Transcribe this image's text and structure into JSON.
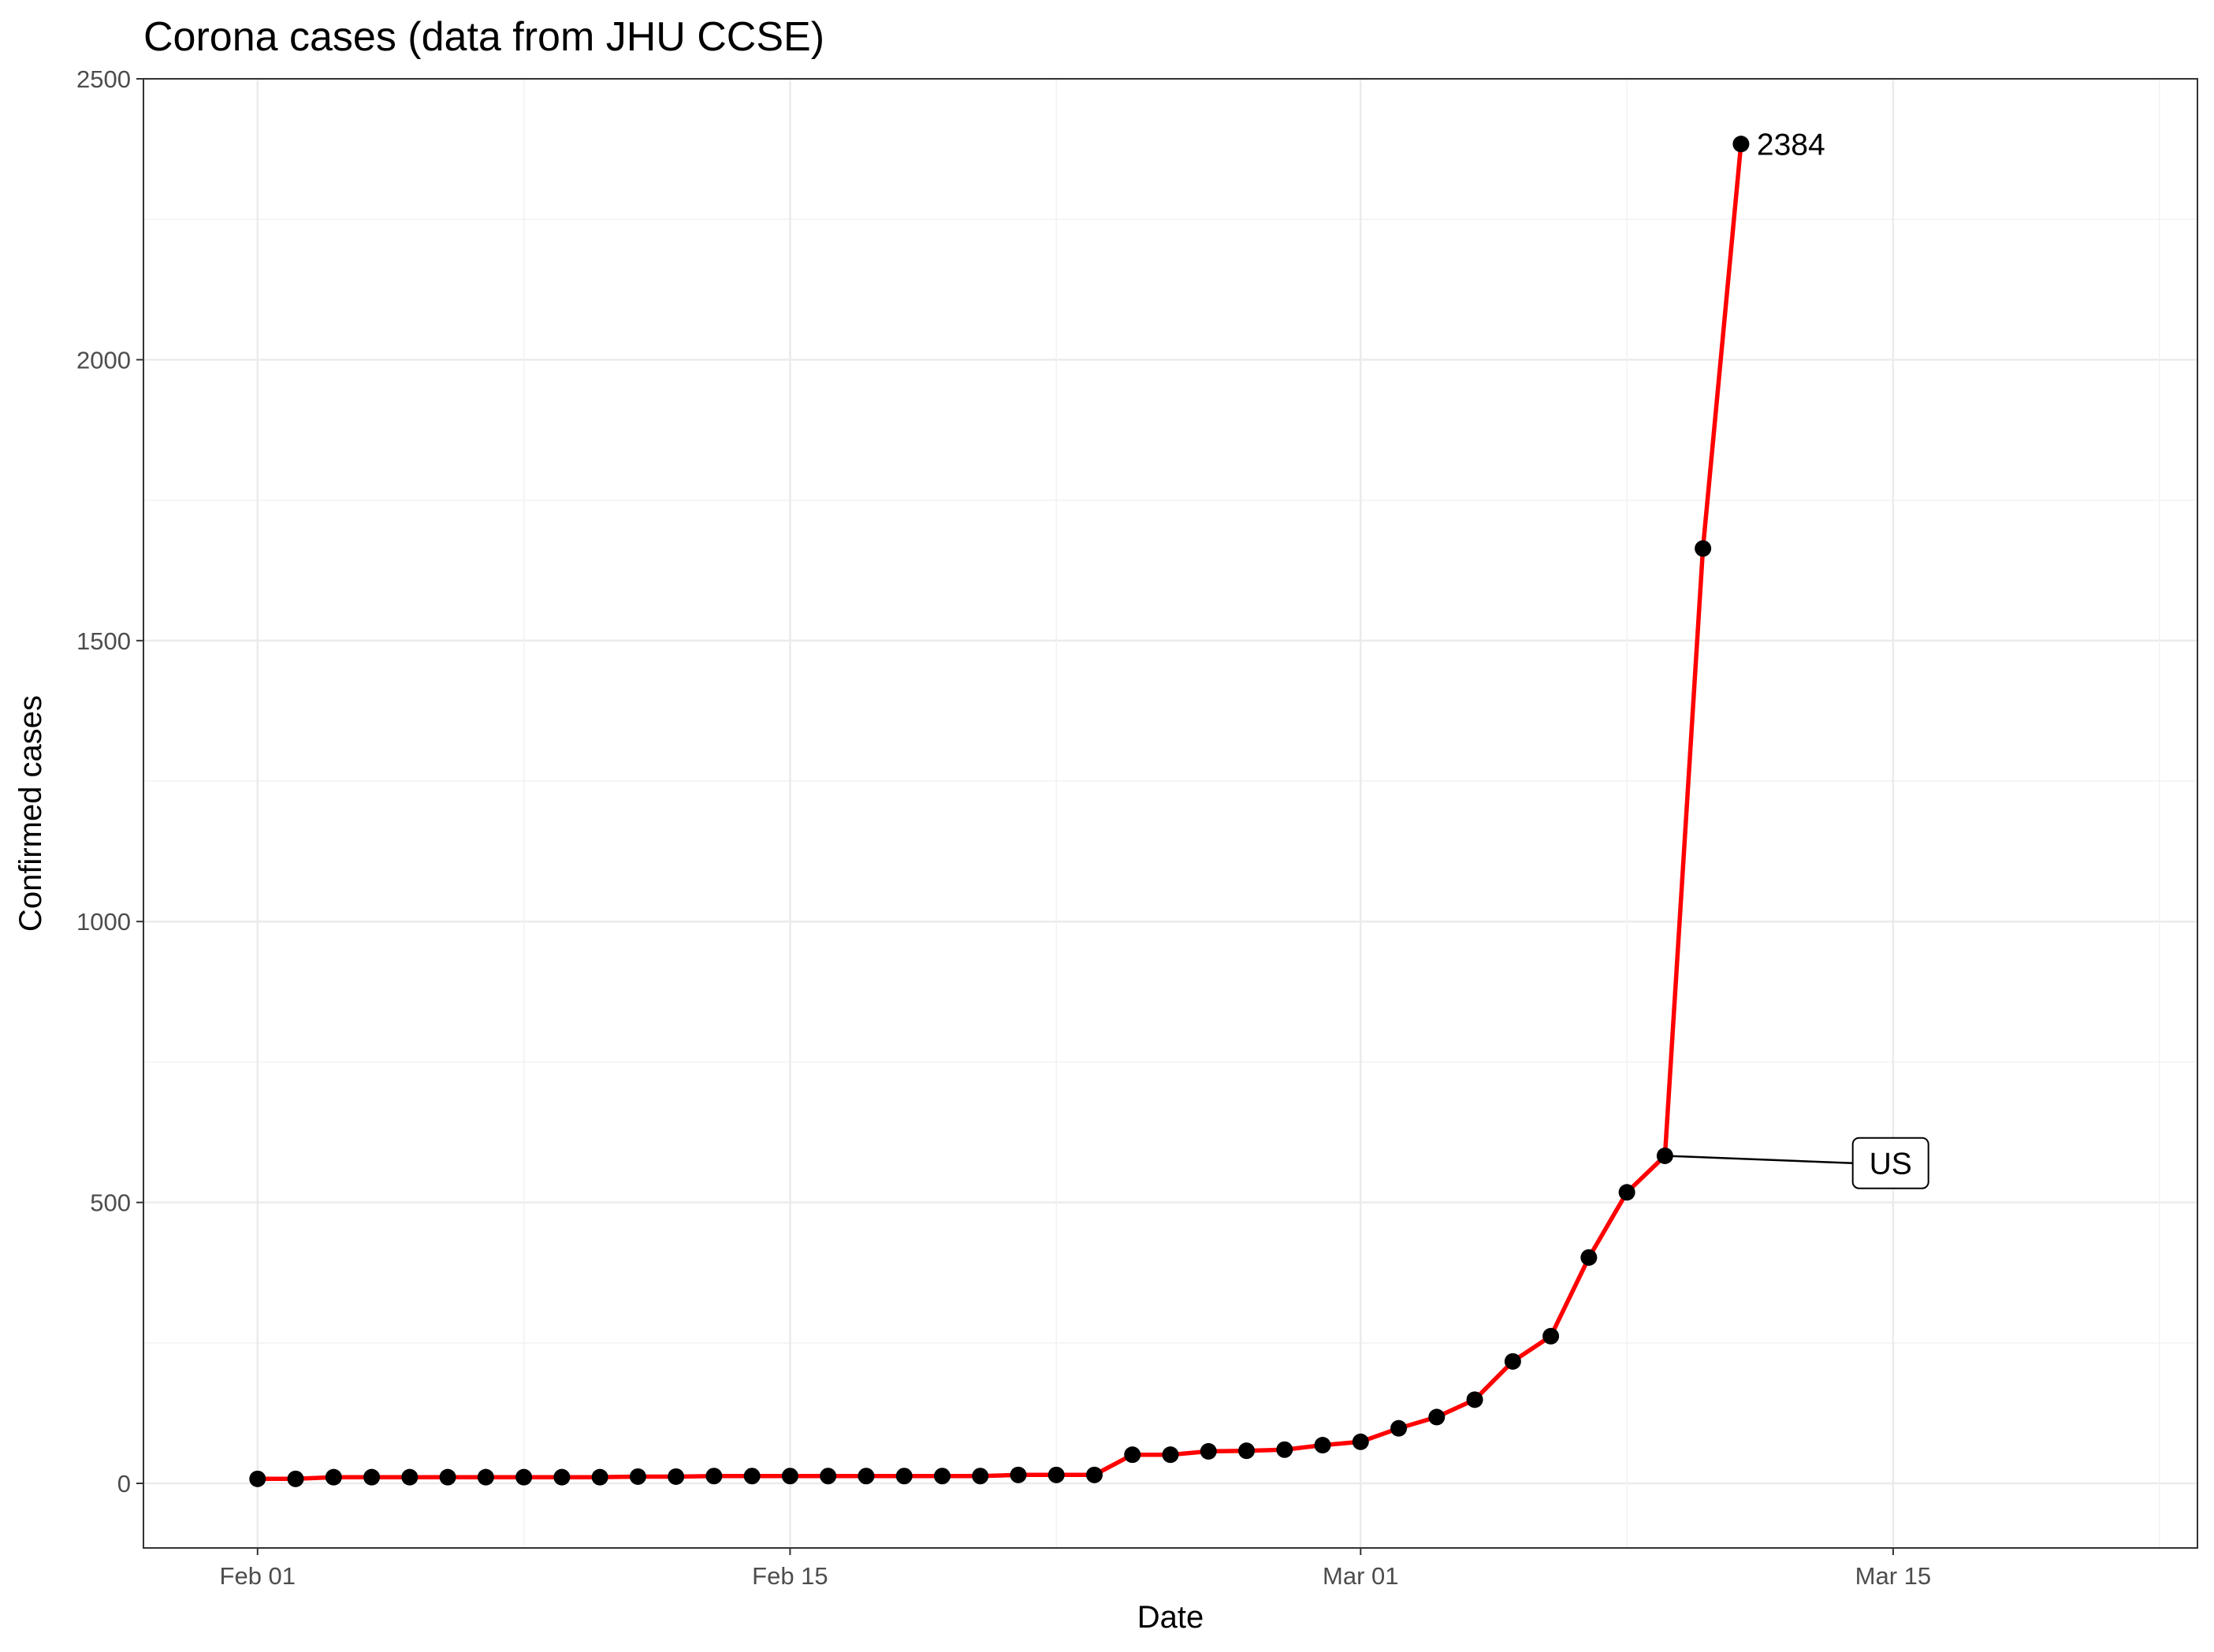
{
  "chart_data": {
    "type": "line",
    "title": "Corona cases (data from JHU CCSE)",
    "xlabel": "Date",
    "ylabel": "Confirmed cases",
    "x_tick_labels": [
      "Feb 01",
      "Feb 15",
      "Mar 01",
      "Mar 15"
    ],
    "x_tick_dates": [
      "2020-02-01",
      "2020-02-15",
      "2020-03-01",
      "2020-03-15"
    ],
    "xlim": [
      "2020-01-29",
      "2020-03-23"
    ],
    "y_tick_labels": [
      "0",
      "500",
      "1000",
      "1500",
      "2000",
      "2500"
    ],
    "ylim": [
      -115,
      2500
    ],
    "grid": true,
    "series": [
      {
        "name": "US",
        "color": "#ff0000",
        "point_color": "#000000",
        "x": [
          "2020-02-01",
          "2020-02-02",
          "2020-02-03",
          "2020-02-04",
          "2020-02-05",
          "2020-02-06",
          "2020-02-07",
          "2020-02-08",
          "2020-02-09",
          "2020-02-10",
          "2020-02-11",
          "2020-02-12",
          "2020-02-13",
          "2020-02-14",
          "2020-02-15",
          "2020-02-16",
          "2020-02-17",
          "2020-02-18",
          "2020-02-19",
          "2020-02-20",
          "2020-02-21",
          "2020-02-22",
          "2020-02-23",
          "2020-02-24",
          "2020-02-25",
          "2020-02-26",
          "2020-02-27",
          "2020-02-28",
          "2020-02-29",
          "2020-03-01",
          "2020-03-02",
          "2020-03-03",
          "2020-03-04",
          "2020-03-05",
          "2020-03-06",
          "2020-03-07",
          "2020-03-08",
          "2020-03-09",
          "2020-03-10",
          "2020-03-11"
        ],
        "values": [
          8,
          8,
          11,
          11,
          11,
          11,
          11,
          11,
          11,
          11,
          12,
          12,
          13,
          13,
          13,
          13,
          13,
          13,
          13,
          13,
          15,
          15,
          15,
          51,
          51,
          57,
          58,
          60,
          68,
          74,
          98,
          118,
          149,
          217,
          262,
          402,
          518,
          583,
          1664,
          2384
        ]
      }
    ],
    "annotations": [
      {
        "text": "2384",
        "x": "2020-03-11",
        "y": 2384,
        "kind": "text"
      },
      {
        "text": "US",
        "x": "2020-03-14",
        "y": 570,
        "kind": "label",
        "points_to": {
          "x": "2020-03-09",
          "y": 583
        }
      }
    ]
  }
}
